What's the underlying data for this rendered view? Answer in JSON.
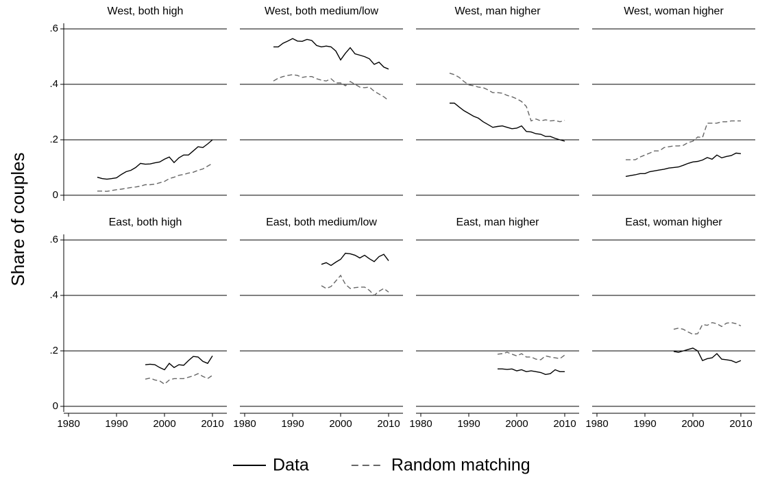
{
  "ylabel": "Share of couples",
  "chart_data": [
    {
      "type": "line",
      "title": "West, both high",
      "x": [
        1986,
        1987,
        1988,
        1989,
        1990,
        1991,
        1992,
        1993,
        1994,
        1995,
        1996,
        1997,
        1998,
        1999,
        2000,
        2001,
        2002,
        2003,
        2004,
        2005,
        2006,
        2007,
        2008,
        2009,
        2010
      ],
      "series": [
        {
          "name": "Data",
          "color": "#000000",
          "dash": false,
          "values": [
            0.065,
            0.06,
            0.058,
            0.06,
            0.063,
            0.075,
            0.085,
            0.09,
            0.1,
            0.115,
            0.112,
            0.113,
            0.117,
            0.12,
            0.13,
            0.138,
            0.118,
            0.135,
            0.145,
            0.145,
            0.16,
            0.175,
            0.172,
            0.185,
            0.2
          ]
        },
        {
          "name": "Random matching",
          "color": "#666666",
          "dash": true,
          "values": [
            0.015,
            0.015,
            0.014,
            0.017,
            0.02,
            0.022,
            0.025,
            0.028,
            0.03,
            0.033,
            0.038,
            0.038,
            0.04,
            0.045,
            0.05,
            0.06,
            0.065,
            0.072,
            0.075,
            0.08,
            0.083,
            0.09,
            0.095,
            0.105,
            0.115
          ]
        }
      ],
      "xlim": [
        1979,
        2013
      ],
      "ylim": [
        -0.02,
        0.62
      ],
      "yticks": [
        0,
        {
          "value": 0.2,
          "label": ".2"
        },
        {
          "value": 0.4,
          "label": ".4"
        },
        {
          "value": 0.6,
          "label": ".6"
        }
      ],
      "grid": true
    },
    {
      "type": "line",
      "title": "West, both medium/low",
      "x": [
        1986,
        1987,
        1988,
        1989,
        1990,
        1991,
        1992,
        1993,
        1994,
        1995,
        1996,
        1997,
        1998,
        1999,
        2000,
        2001,
        2002,
        2003,
        2004,
        2005,
        2006,
        2007,
        2008,
        2009,
        2010
      ],
      "series": [
        {
          "name": "Data",
          "color": "#000000",
          "dash": false,
          "values": [
            0.535,
            0.535,
            0.548,
            0.556,
            0.565,
            0.556,
            0.555,
            0.562,
            0.558,
            0.54,
            0.535,
            0.538,
            0.535,
            0.52,
            0.488,
            0.512,
            0.532,
            0.51,
            0.505,
            0.5,
            0.492,
            0.472,
            0.48,
            0.462,
            0.455
          ]
        },
        {
          "name": "Random matching",
          "color": "#666666",
          "dash": true,
          "values": [
            0.412,
            0.422,
            0.428,
            0.432,
            0.435,
            0.432,
            0.425,
            0.428,
            0.428,
            0.42,
            0.415,
            0.412,
            0.42,
            0.405,
            0.405,
            0.395,
            0.41,
            0.4,
            0.39,
            0.388,
            0.39,
            0.375,
            0.365,
            0.355,
            0.342
          ]
        }
      ],
      "xlim": [
        1979,
        2013
      ],
      "ylim": [
        -0.02,
        0.62
      ],
      "yticks": [
        0,
        {
          "value": 0.2,
          "label": ".2"
        },
        {
          "value": 0.4,
          "label": ".4"
        },
        {
          "value": 0.6,
          "label": ".6"
        }
      ],
      "grid": true
    },
    {
      "type": "line",
      "title": "West, man higher",
      "x": [
        1986,
        1987,
        1988,
        1989,
        1990,
        1991,
        1992,
        1993,
        1994,
        1995,
        1996,
        1997,
        1998,
        1999,
        2000,
        2001,
        2002,
        2003,
        2004,
        2005,
        2006,
        2007,
        2008,
        2009,
        2010
      ],
      "series": [
        {
          "name": "Data",
          "color": "#000000",
          "dash": false,
          "values": [
            0.332,
            0.332,
            0.318,
            0.305,
            0.295,
            0.285,
            0.278,
            0.265,
            0.255,
            0.245,
            0.248,
            0.25,
            0.245,
            0.24,
            0.242,
            0.25,
            0.23,
            0.228,
            0.222,
            0.22,
            0.212,
            0.212,
            0.205,
            0.2,
            0.195
          ]
        },
        {
          "name": "Random matching",
          "color": "#666666",
          "dash": true,
          "values": [
            0.44,
            0.435,
            0.425,
            0.41,
            0.398,
            0.395,
            0.39,
            0.388,
            0.38,
            0.37,
            0.37,
            0.368,
            0.36,
            0.355,
            0.348,
            0.338,
            0.32,
            0.268,
            0.275,
            0.268,
            0.272,
            0.268,
            0.27,
            0.265,
            0.27
          ]
        }
      ],
      "xlim": [
        1979,
        2013
      ],
      "ylim": [
        -0.02,
        0.62
      ],
      "yticks": [
        0,
        {
          "value": 0.2,
          "label": ".2"
        },
        {
          "value": 0.4,
          "label": ".4"
        },
        {
          "value": 0.6,
          "label": ".6"
        }
      ],
      "grid": true
    },
    {
      "type": "line",
      "title": "West, woman higher",
      "x": [
        1986,
        1987,
        1988,
        1989,
        1990,
        1991,
        1992,
        1993,
        1994,
        1995,
        1996,
        1997,
        1998,
        1999,
        2000,
        2001,
        2002,
        2003,
        2004,
        2005,
        2006,
        2007,
        2008,
        2009,
        2010
      ],
      "series": [
        {
          "name": "Data",
          "color": "#000000",
          "dash": false,
          "values": [
            0.068,
            0.071,
            0.074,
            0.078,
            0.078,
            0.085,
            0.088,
            0.091,
            0.094,
            0.098,
            0.1,
            0.102,
            0.108,
            0.115,
            0.12,
            0.122,
            0.127,
            0.136,
            0.13,
            0.145,
            0.135,
            0.14,
            0.143,
            0.152,
            0.15
          ]
        },
        {
          "name": "Random matching",
          "color": "#666666",
          "dash": true,
          "values": [
            0.128,
            0.128,
            0.128,
            0.138,
            0.145,
            0.152,
            0.16,
            0.16,
            0.172,
            0.175,
            0.178,
            0.178,
            0.18,
            0.19,
            0.195,
            0.21,
            0.208,
            0.26,
            0.26,
            0.26,
            0.265,
            0.265,
            0.268,
            0.268,
            0.268
          ]
        }
      ],
      "xlim": [
        1979,
        2013
      ],
      "ylim": [
        -0.02,
        0.62
      ],
      "yticks": [
        0,
        {
          "value": 0.2,
          "label": ".2"
        },
        {
          "value": 0.4,
          "label": ".4"
        },
        {
          "value": 0.6,
          "label": ".6"
        }
      ],
      "grid": true
    },
    {
      "type": "line",
      "title": "East, both high",
      "x": [
        1996,
        1997,
        1998,
        1999,
        2000,
        2001,
        2002,
        2003,
        2004,
        2005,
        2006,
        2007,
        2008,
        2009,
        2010
      ],
      "series": [
        {
          "name": "Data",
          "color": "#000000",
          "dash": false,
          "values": [
            0.15,
            0.152,
            0.15,
            0.14,
            0.132,
            0.155,
            0.14,
            0.15,
            0.148,
            0.165,
            0.18,
            0.178,
            0.162,
            0.155,
            0.182
          ]
        },
        {
          "name": "Random matching",
          "color": "#666666",
          "dash": true,
          "values": [
            0.098,
            0.102,
            0.095,
            0.092,
            0.08,
            0.095,
            0.1,
            0.1,
            0.1,
            0.105,
            0.11,
            0.118,
            0.108,
            0.1,
            0.112
          ]
        }
      ],
      "xlim": [
        1979,
        2013
      ],
      "xticks": [
        1980,
        1990,
        2000,
        2010
      ],
      "ylim": [
        -0.02,
        0.62
      ],
      "yticks": [
        0,
        {
          "value": 0.2,
          "label": ".2"
        },
        {
          "value": 0.4,
          "label": ".4"
        },
        {
          "value": 0.6,
          "label": ".6"
        }
      ],
      "grid": true
    },
    {
      "type": "line",
      "title": "East, both medium/low",
      "x": [
        1996,
        1997,
        1998,
        1999,
        2000,
        2001,
        2002,
        2003,
        2004,
        2005,
        2006,
        2007,
        2008,
        2009,
        2010
      ],
      "series": [
        {
          "name": "Data",
          "color": "#000000",
          "dash": false,
          "values": [
            0.512,
            0.518,
            0.508,
            0.52,
            0.53,
            0.552,
            0.55,
            0.545,
            0.535,
            0.545,
            0.532,
            0.522,
            0.54,
            0.548,
            0.525
          ]
        },
        {
          "name": "Random matching",
          "color": "#666666",
          "dash": true,
          "values": [
            0.435,
            0.425,
            0.432,
            0.452,
            0.472,
            0.44,
            0.425,
            0.428,
            0.43,
            0.43,
            0.418,
            0.4,
            0.415,
            0.425,
            0.412
          ]
        }
      ],
      "xlim": [
        1979,
        2013
      ],
      "xticks": [
        1980,
        1990,
        2000,
        2010
      ],
      "ylim": [
        -0.02,
        0.62
      ],
      "yticks": [
        0,
        {
          "value": 0.2,
          "label": ".2"
        },
        {
          "value": 0.4,
          "label": ".4"
        },
        {
          "value": 0.6,
          "label": ".6"
        }
      ],
      "grid": true
    },
    {
      "type": "line",
      "title": "East, man higher",
      "x": [
        1996,
        1997,
        1998,
        1999,
        2000,
        2001,
        2002,
        2003,
        2004,
        2005,
        2006,
        2007,
        2008,
        2009,
        2010
      ],
      "series": [
        {
          "name": "Data",
          "color": "#000000",
          "dash": false,
          "values": [
            0.135,
            0.135,
            0.133,
            0.135,
            0.128,
            0.132,
            0.125,
            0.128,
            0.125,
            0.122,
            0.115,
            0.118,
            0.132,
            0.125,
            0.125
          ]
        },
        {
          "name": "Random matching",
          "color": "#666666",
          "dash": true,
          "values": [
            0.188,
            0.19,
            0.195,
            0.188,
            0.182,
            0.19,
            0.178,
            0.178,
            0.17,
            0.168,
            0.182,
            0.178,
            0.175,
            0.172,
            0.185
          ]
        }
      ],
      "xlim": [
        1979,
        2013
      ],
      "xticks": [
        1980,
        1990,
        2000,
        2010
      ],
      "ylim": [
        -0.02,
        0.62
      ],
      "yticks": [
        0,
        {
          "value": 0.2,
          "label": ".2"
        },
        {
          "value": 0.4,
          "label": ".4"
        },
        {
          "value": 0.6,
          "label": ".6"
        }
      ],
      "grid": true
    },
    {
      "type": "line",
      "title": "East, woman higher",
      "x": [
        1996,
        1997,
        1998,
        1999,
        2000,
        2001,
        2002,
        2003,
        2004,
        2005,
        2006,
        2007,
        2008,
        2009,
        2010
      ],
      "series": [
        {
          "name": "Data",
          "color": "#000000",
          "dash": false,
          "values": [
            0.198,
            0.195,
            0.2,
            0.205,
            0.21,
            0.2,
            0.165,
            0.172,
            0.175,
            0.19,
            0.17,
            0.168,
            0.165,
            0.158,
            0.165
          ]
        },
        {
          "name": "Random matching",
          "color": "#666666",
          "dash": true,
          "values": [
            0.278,
            0.282,
            0.278,
            0.268,
            0.26,
            0.262,
            0.295,
            0.292,
            0.302,
            0.298,
            0.288,
            0.3,
            0.302,
            0.298,
            0.29
          ]
        }
      ],
      "xlim": [
        1979,
        2013
      ],
      "xticks": [
        1980,
        1990,
        2000,
        2010
      ],
      "ylim": [
        -0.02,
        0.62
      ],
      "yticks": [
        0,
        {
          "value": 0.2,
          "label": ".2"
        },
        {
          "value": 0.4,
          "label": ".4"
        },
        {
          "value": 0.6,
          "label": ".6"
        }
      ],
      "grid": true
    }
  ]
}
